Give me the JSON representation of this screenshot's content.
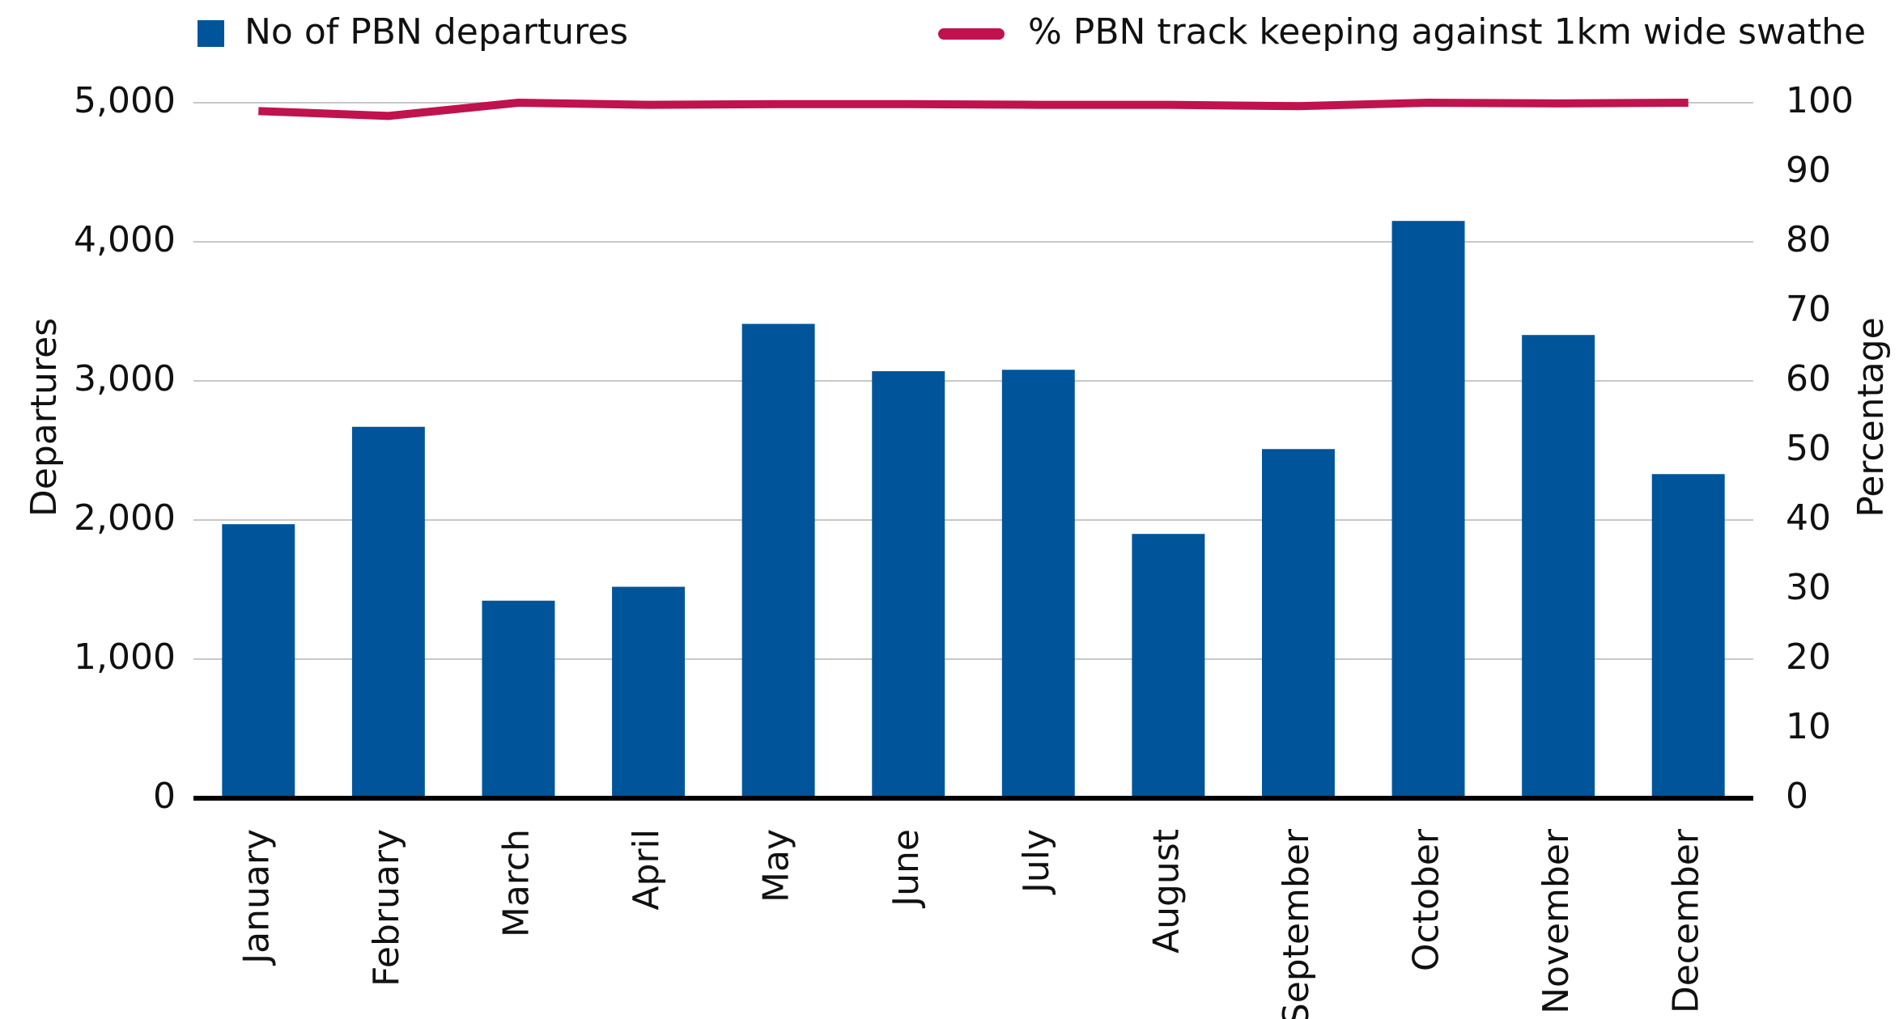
{
  "chart_data": {
    "type": "bar",
    "categories": [
      "January",
      "February",
      "March",
      "April",
      "May",
      "June",
      "July",
      "August",
      "September",
      "October",
      "November",
      "December"
    ],
    "ylabel": "Departures",
    "y2label": "Percentage",
    "series": [
      {
        "name": "No of PBN departures",
        "color": "#00549a",
        "type": "bar",
        "values": [
          1970,
          2670,
          1420,
          1520,
          3410,
          3070,
          3080,
          1900,
          2510,
          4150,
          3330,
          2330
        ]
      },
      {
        "name": "% PBN track keeping against 1km wide swathe",
        "color": "#c0124e",
        "type": "line",
        "axis": "y2",
        "values": [
          98.8,
          98.1,
          100,
          99.7,
          99.8,
          99.8,
          99.7,
          99.7,
          99.5,
          100,
          99.9,
          100
        ]
      }
    ],
    "ylim": [
      0,
      5000
    ],
    "yticks": [
      0,
      {
        "value": 1000,
        "label": "1,000"
      },
      {
        "value": 2000,
        "label": "2,000"
      },
      {
        "value": 3000,
        "label": "3,000"
      },
      {
        "value": 4000,
        "label": "4,000"
      },
      {
        "value": 5000,
        "label": "5,000"
      }
    ],
    "y2lim": [
      0,
      100
    ],
    "y2ticks": [
      0,
      10,
      20,
      30,
      40,
      50,
      60,
      70,
      80,
      90,
      100
    ],
    "grid": true,
    "legend": "top"
  }
}
